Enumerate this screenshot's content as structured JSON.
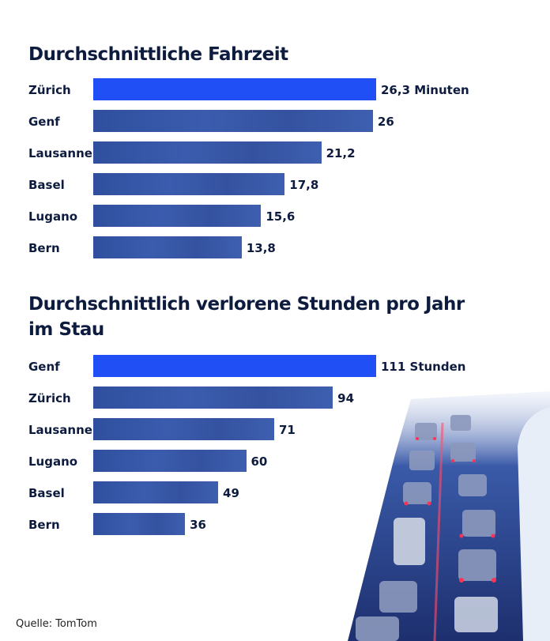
{
  "source": "Quelle: TomTom",
  "colors": {
    "highlight": "#1f4ff5",
    "bar": "#34529f",
    "text": "#0d1b3e"
  },
  "chart_data": [
    {
      "type": "bar",
      "orientation": "horizontal",
      "title": "Durchschnittliche Fahrzeit",
      "unit": "Minuten",
      "categories": [
        "Zürich",
        "Genf",
        "Lausanne",
        "Basel",
        "Lugano",
        "Bern"
      ],
      "values": [
        26.3,
        26,
        21.2,
        17.8,
        15.6,
        13.8
      ],
      "value_labels": [
        "26,3 Minuten",
        "26",
        "21,2",
        "17,8",
        "15,6",
        "13,8"
      ],
      "highlight_index": 0
    },
    {
      "type": "bar",
      "orientation": "horizontal",
      "title": "Durchschnittlich verlorene Stunden pro Jahr im Stau",
      "title_lines": [
        "Durchschnittlich verlorene Stunden pro Jahr",
        "im Stau"
      ],
      "unit": "Stunden",
      "categories": [
        "Genf",
        "Zürich",
        "Lausanne",
        "Lugano",
        "Basel",
        "Bern"
      ],
      "values": [
        111,
        94,
        71,
        60,
        49,
        36
      ],
      "value_labels": [
        "111 Stunden",
        "94",
        "71",
        "60",
        "49",
        "36"
      ],
      "highlight_index": 0
    }
  ]
}
